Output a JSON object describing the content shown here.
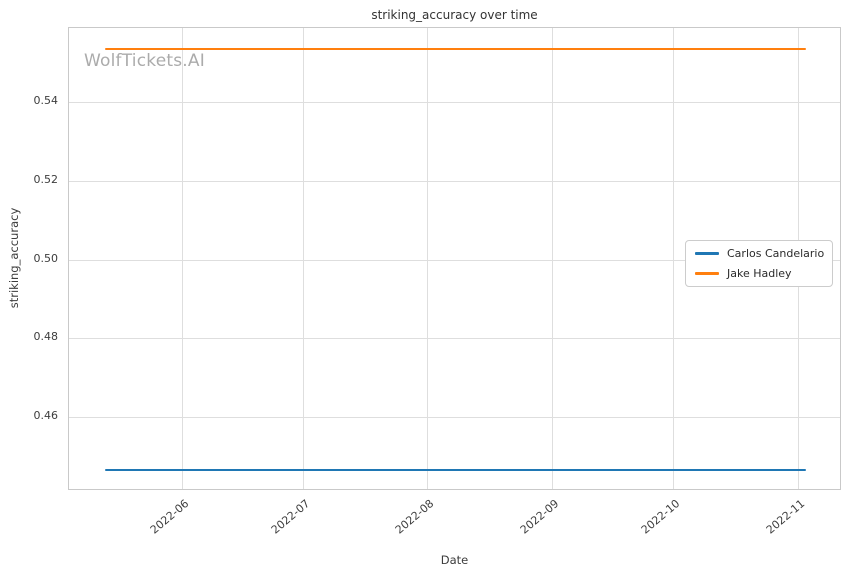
{
  "watermark": "WolfTickets.AI",
  "chart_data": {
    "type": "line",
    "title": "striking_accuracy over time",
    "xlabel": "Date",
    "ylabel": "striking_accuracy",
    "grid": true,
    "legend_position": "center right",
    "x_tick_labels": [
      "2022-06",
      "2022-07",
      "2022-08",
      "2022-09",
      "2022-10",
      "2022-11"
    ],
    "x_tick_dates": [
      "2022-06-01",
      "2022-07-01",
      "2022-08-01",
      "2022-09-01",
      "2022-10-01",
      "2022-11-01"
    ],
    "xlim": [
      "2022-05-04",
      "2022-11-12"
    ],
    "y_ticks": [
      0.46,
      0.48,
      0.5,
      0.52,
      0.54
    ],
    "ylim": [
      0.4413,
      0.5587
    ],
    "series": [
      {
        "name": "Carlos Candelario",
        "color": "#1f77b4",
        "x": [
          "2022-05-13",
          "2022-11-03"
        ],
        "values": [
          0.4466,
          0.4466
        ]
      },
      {
        "name": "Jake Hadley",
        "color": "#ff7f0e",
        "x": [
          "2022-05-13",
          "2022-11-03"
        ],
        "values": [
          0.5534,
          0.5534
        ]
      }
    ]
  },
  "legend": {
    "items": [
      {
        "label": "Carlos Candelario",
        "color": "#1f77b4"
      },
      {
        "label": "Jake Hadley",
        "color": "#ff7f0e"
      }
    ]
  }
}
